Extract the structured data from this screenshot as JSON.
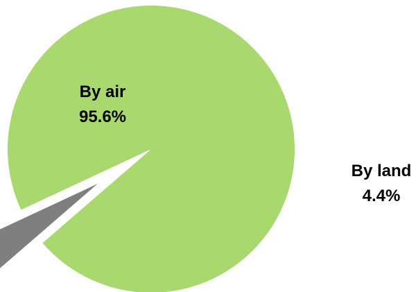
{
  "chart_data": {
    "type": "pie",
    "title": "",
    "legend": "none",
    "slices": [
      {
        "name": "By air",
        "value": 95.6,
        "label": "95.6%",
        "color": "#a9d86e"
      },
      {
        "name": "By land",
        "value": 4.4,
        "label": "4.4%",
        "color": "#7f7f7f"
      }
    ]
  }
}
